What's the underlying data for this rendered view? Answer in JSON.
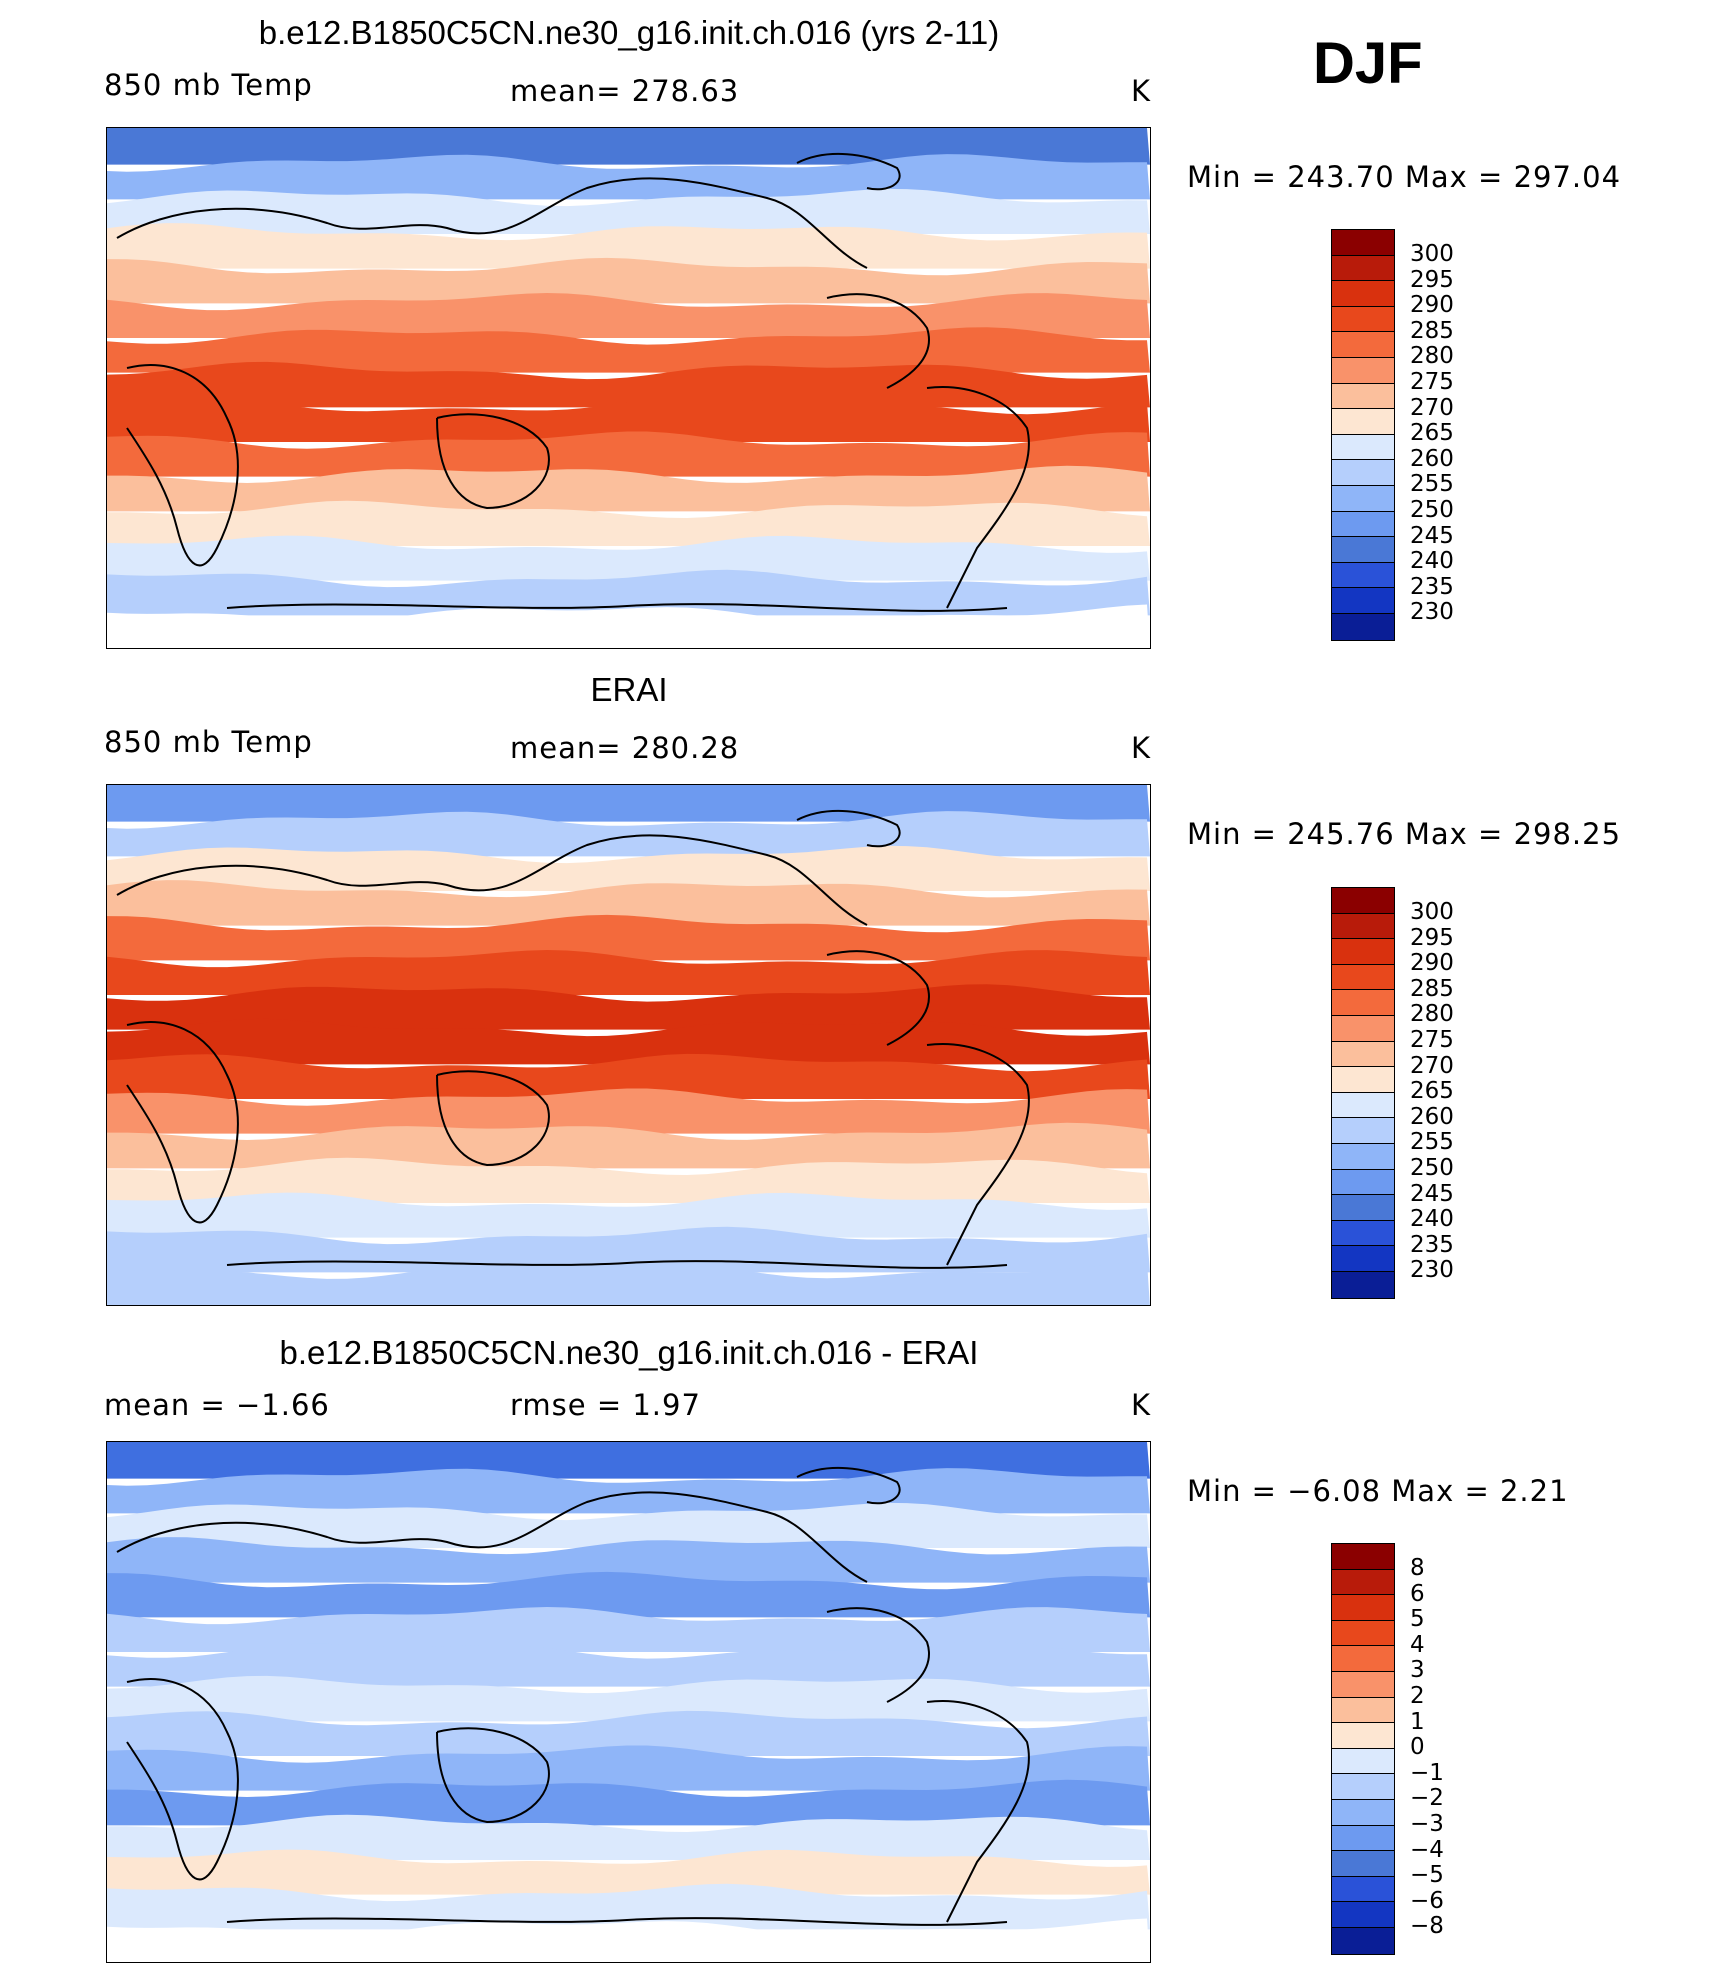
{
  "season": "DJF",
  "panels": [
    {
      "title": "b.e12.B1850C5CN.ne30_g16.init.ch.016 (yrs 2-11)",
      "left_label": "850 mb Temp",
      "center_label": "mean=  278.63",
      "right_label": "K",
      "minmax": "Min  =  243.70  Max  =  297.04",
      "bands": [
        "#4a78d6",
        "#8fb5f8",
        "#dbe9fd",
        "#fde6d2",
        "#fbbf9c",
        "#f9926a",
        "#f36a3c",
        "#e8481c",
        "#e8481c",
        "#f36a3c",
        "#fbbf9c",
        "#fde6d2",
        "#dbe9fd",
        "#b5cffc",
        "#ffffff"
      ],
      "colorbar_ticks": [
        "300",
        "295",
        "290",
        "285",
        "280",
        "275",
        "270",
        "265",
        "260",
        "255",
        "250",
        "245",
        "240",
        "235",
        "230"
      ]
    },
    {
      "title": "ERAI",
      "left_label": "850 mb Temp",
      "center_label": "mean=  280.28",
      "right_label": "K",
      "minmax": "Min  =  245.76  Max  =  298.25",
      "bands": [
        "#6d9af0",
        "#b5cffc",
        "#fde6d2",
        "#fbbf9c",
        "#f36a3c",
        "#e8481c",
        "#d9310e",
        "#d9310e",
        "#e8481c",
        "#f9926a",
        "#fbbf9c",
        "#fde6d2",
        "#dbe9fd",
        "#b5cffc",
        "#b5cffc"
      ],
      "colorbar_ticks": [
        "300",
        "295",
        "290",
        "285",
        "280",
        "275",
        "270",
        "265",
        "260",
        "255",
        "250",
        "245",
        "240",
        "235",
        "230"
      ]
    },
    {
      "title": "b.e12.B1850C5CN.ne30_g16.init.ch.016 - ERAI",
      "left_label": "mean  =    −1.66",
      "center_label": "rmse  =     1.97",
      "right_label": "K",
      "minmax": "Min  =    −6.08  Max  =     2.21",
      "bands": [
        "#3f6fe0",
        "#8fb5f8",
        "#dbe9fd",
        "#8fb5f8",
        "#6d9af0",
        "#b5cffc",
        "#b5cffc",
        "#dbe9fd",
        "#b5cffc",
        "#8fb5f8",
        "#6d9af0",
        "#dbe9fd",
        "#fde6d2",
        "#dbe9fd",
        "#ffffff"
      ],
      "colorbar_ticks": [
        "8",
        "6",
        "5",
        "4",
        "3",
        "2",
        "1",
        "0",
        "−1",
        "−2",
        "−3",
        "−4",
        "−5",
        "−6",
        "−8"
      ]
    }
  ],
  "colorbar_colors": [
    "#8b0000",
    "#b81b0a",
    "#d9310e",
    "#e8481c",
    "#f36a3c",
    "#f9926a",
    "#fbbf9c",
    "#fde6d2",
    "#dbe9fd",
    "#b5cffc",
    "#8fb5f8",
    "#6d9af0",
    "#4a78d6",
    "#2a52d8",
    "#1336c2",
    "#0a1e96"
  ]
}
